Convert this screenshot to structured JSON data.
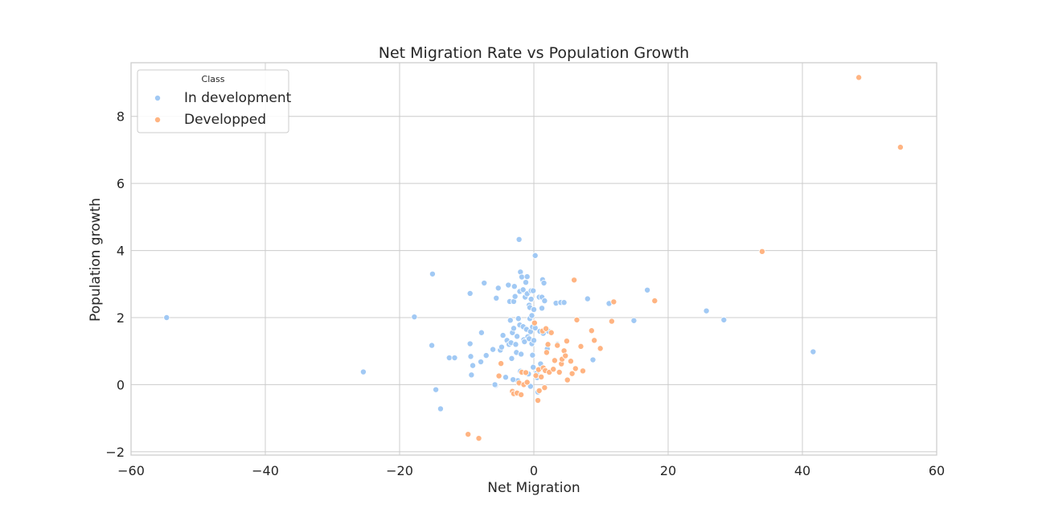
{
  "chart_data": {
    "type": "scatter",
    "title": "Net Migration Rate vs Population Growth",
    "xlabel": "Net Migration",
    "ylabel": "Population growth",
    "xlim": [
      -60,
      60
    ],
    "ylim": [
      -2.1,
      9.6
    ],
    "xticks": [
      -60,
      -40,
      -20,
      0,
      20,
      40,
      60
    ],
    "xtick_labels": [
      "−60",
      "−40",
      "−20",
      "0",
      "20",
      "40",
      "60"
    ],
    "yticks": [
      -2,
      0,
      2,
      4,
      6,
      8
    ],
    "ytick_labels": [
      "−2",
      "0",
      "2",
      "4",
      "6",
      "8"
    ],
    "grid": true,
    "legend": {
      "title": "Class",
      "placement": "top-left"
    },
    "series": [
      {
        "name": "In development",
        "color": "#a1c9f4",
        "points": [
          [
            -54.7,
            2.0
          ],
          [
            -25.4,
            0.38
          ],
          [
            -17.8,
            2.02
          ],
          [
            -15.1,
            3.3
          ],
          [
            -15.2,
            1.17
          ],
          [
            -14.6,
            -0.15
          ],
          [
            -13.9,
            -0.72
          ],
          [
            -12.6,
            0.8
          ],
          [
            -11.8,
            0.8
          ],
          [
            -9.5,
            2.72
          ],
          [
            -9.5,
            1.22
          ],
          [
            -9.4,
            0.84
          ],
          [
            -9.3,
            0.29
          ],
          [
            -9.1,
            0.57
          ],
          [
            -7.9,
            0.68
          ],
          [
            -7.8,
            1.55
          ],
          [
            -7.4,
            3.03
          ],
          [
            -7.1,
            0.87
          ],
          [
            -6.1,
            1.05
          ],
          [
            -5.7,
            -0.02
          ],
          [
            -5.6,
            2.58
          ],
          [
            -5.3,
            2.88
          ],
          [
            -5.0,
            1.03
          ],
          [
            -4.8,
            1.12
          ],
          [
            -4.6,
            1.47
          ],
          [
            -4.2,
            0.22
          ],
          [
            -4.0,
            1.32
          ],
          [
            -3.8,
            2.97
          ],
          [
            -3.7,
            1.2
          ],
          [
            -3.5,
            1.92
          ],
          [
            -3.6,
            2.48
          ],
          [
            -3.4,
            1.25
          ],
          [
            -3.3,
            0.78
          ],
          [
            -3.2,
            1.55
          ],
          [
            -3.0,
            2.48
          ],
          [
            -3.0,
            1.68
          ],
          [
            -2.9,
            2.93
          ],
          [
            -2.8,
            2.63
          ],
          [
            -2.7,
            1.2
          ],
          [
            -2.6,
            0.96
          ],
          [
            -2.5,
            1.44
          ],
          [
            -2.3,
            1.97
          ],
          [
            -2.4,
            0.12
          ],
          [
            -2.2,
            4.33
          ],
          [
            -2.1,
            1.78
          ],
          [
            -2.1,
            2.78
          ],
          [
            -2.0,
            3.36
          ],
          [
            -1.9,
            0.91
          ],
          [
            -1.8,
            3.21
          ],
          [
            -1.6,
            2.83
          ],
          [
            -1.6,
            1.73
          ],
          [
            -1.5,
            1.34
          ],
          [
            -1.4,
            1.28
          ],
          [
            -1.3,
            2.61
          ],
          [
            -1.2,
            3.05
          ],
          [
            -1.1,
            1.65
          ],
          [
            -1.0,
            2.71
          ],
          [
            -1.0,
            3.22
          ],
          [
            -0.9,
            1.43
          ],
          [
            -0.8,
            0.32
          ],
          [
            -0.7,
            1.37
          ],
          [
            -0.7,
            2.37
          ],
          [
            -0.6,
            1.97
          ],
          [
            -0.6,
            2.3
          ],
          [
            -0.5,
            1.58
          ],
          [
            -0.4,
            2.55
          ],
          [
            -0.4,
            2.8
          ],
          [
            -0.3,
            1.22
          ],
          [
            -0.3,
            2.06
          ],
          [
            -0.2,
            0.88
          ],
          [
            -0.2,
            1.72
          ],
          [
            -0.1,
            2.8
          ],
          [
            -0.1,
            0.52
          ],
          [
            0.0,
            1.32
          ],
          [
            0.0,
            2.24
          ],
          [
            0.2,
            1.69
          ],
          [
            0.2,
            3.85
          ],
          [
            0.5,
            0.21
          ],
          [
            0.8,
            2.61
          ],
          [
            0.9,
            1.59
          ],
          [
            1.0,
            0.48
          ],
          [
            1.2,
            2.61
          ],
          [
            1.2,
            2.28
          ],
          [
            1.3,
            3.13
          ],
          [
            1.4,
            1.53
          ],
          [
            1.5,
            3.03
          ],
          [
            1.6,
            2.5
          ],
          [
            2.0,
            1.07
          ],
          [
            2.2,
            1.59
          ],
          [
            3.3,
            2.43
          ],
          [
            3.5,
            1.2
          ],
          [
            4.0,
            2.45
          ],
          [
            4.5,
            2.45
          ],
          [
            8.0,
            2.56
          ],
          [
            8.8,
            0.74
          ],
          [
            11.2,
            2.42
          ],
          [
            14.9,
            1.91
          ],
          [
            16.9,
            2.82
          ],
          [
            25.7,
            2.2
          ],
          [
            28.3,
            1.93
          ],
          [
            41.6,
            0.98
          ],
          [
            -0.5,
            -0.05
          ],
          [
            0.6,
            -0.22
          ],
          [
            -5.8,
            0.0
          ],
          [
            -3.1,
            0.15
          ],
          [
            -2.0,
            0.4
          ],
          [
            1.0,
            0.62
          ],
          [
            0.4,
            0.34
          ]
        ]
      },
      {
        "name": "Developped",
        "color": "#ffb482",
        "points": [
          [
            -9.8,
            -1.48
          ],
          [
            -8.2,
            -1.6
          ],
          [
            -5.2,
            0.26
          ],
          [
            -4.9,
            0.63
          ],
          [
            -3.2,
            -0.2
          ],
          [
            -3.0,
            -0.27
          ],
          [
            -2.5,
            -0.25
          ],
          [
            -2.2,
            0.05
          ],
          [
            -1.9,
            -0.3
          ],
          [
            -1.8,
            0.37
          ],
          [
            -1.5,
            0.0
          ],
          [
            -1.2,
            0.36
          ],
          [
            -1.0,
            0.07
          ],
          [
            0.1,
            1.84
          ],
          [
            0.3,
            0.27
          ],
          [
            0.6,
            -0.47
          ],
          [
            0.7,
            0.45
          ],
          [
            0.8,
            -0.18
          ],
          [
            1.1,
            0.23
          ],
          [
            1.3,
            1.6
          ],
          [
            1.4,
            0.5
          ],
          [
            1.6,
            -0.09
          ],
          [
            1.7,
            0.42
          ],
          [
            1.8,
            1.67
          ],
          [
            1.9,
            0.96
          ],
          [
            2.1,
            1.2
          ],
          [
            2.3,
            0.37
          ],
          [
            2.6,
            1.55
          ],
          [
            2.9,
            0.46
          ],
          [
            3.1,
            0.72
          ],
          [
            3.5,
            1.17
          ],
          [
            3.8,
            0.37
          ],
          [
            4.1,
            0.62
          ],
          [
            4.2,
            0.76
          ],
          [
            4.5,
            1.01
          ],
          [
            4.7,
            0.86
          ],
          [
            4.9,
            1.3
          ],
          [
            5.0,
            0.14
          ],
          [
            5.5,
            0.7
          ],
          [
            5.7,
            0.33
          ],
          [
            6.2,
            0.48
          ],
          [
            6.0,
            3.12
          ],
          [
            6.4,
            1.93
          ],
          [
            7.0,
            1.14
          ],
          [
            7.3,
            0.41
          ],
          [
            8.6,
            1.61
          ],
          [
            9.0,
            1.32
          ],
          [
            9.9,
            1.08
          ],
          [
            11.6,
            1.89
          ],
          [
            11.9,
            2.47
          ],
          [
            18.0,
            2.5
          ],
          [
            34.0,
            3.97
          ],
          [
            48.4,
            9.16
          ],
          [
            54.6,
            7.08
          ]
        ]
      }
    ]
  }
}
